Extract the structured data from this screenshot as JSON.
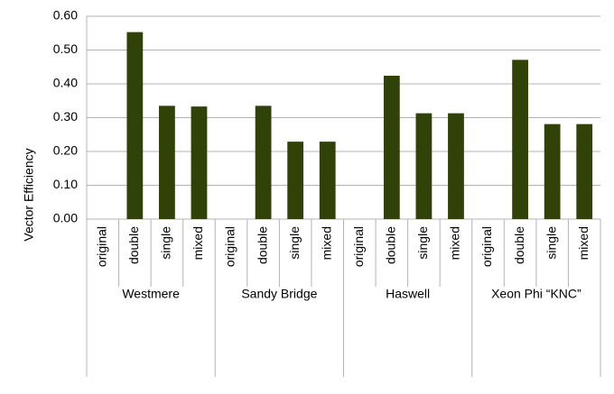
{
  "chart_data": {
    "type": "bar",
    "y_label": "Vector Efficiency",
    "groups": [
      "Westmere",
      "Sandy Bridge",
      "Haswell",
      "Xeon Phi “KNC”"
    ],
    "categories": [
      "original",
      "double",
      "single",
      "mixed",
      "original",
      "double",
      "single",
      "mixed",
      "original",
      "double",
      "single",
      "mixed",
      "original",
      "double",
      "single",
      "mixed"
    ],
    "values": [
      0,
      0.553,
      0.335,
      0.333,
      0,
      0.335,
      0.229,
      0.229,
      0,
      0.424,
      0.313,
      0.313,
      0,
      0.471,
      0.281,
      0.281
    ],
    "color": "#314209",
    "ylim": [
      0,
      0.6
    ],
    "yticks": [
      {
        "value": 0,
        "label": "0.00"
      },
      {
        "value": 0.1,
        "label": "0.10"
      },
      {
        "value": 0.2,
        "label": "0.20"
      },
      {
        "value": 0.3,
        "label": "0.30"
      },
      {
        "value": 0.4,
        "label": "0.40"
      },
      {
        "value": 0.5,
        "label": "0.50"
      },
      {
        "value": 0.6,
        "label": "0.60"
      }
    ],
    "grid": true
  }
}
